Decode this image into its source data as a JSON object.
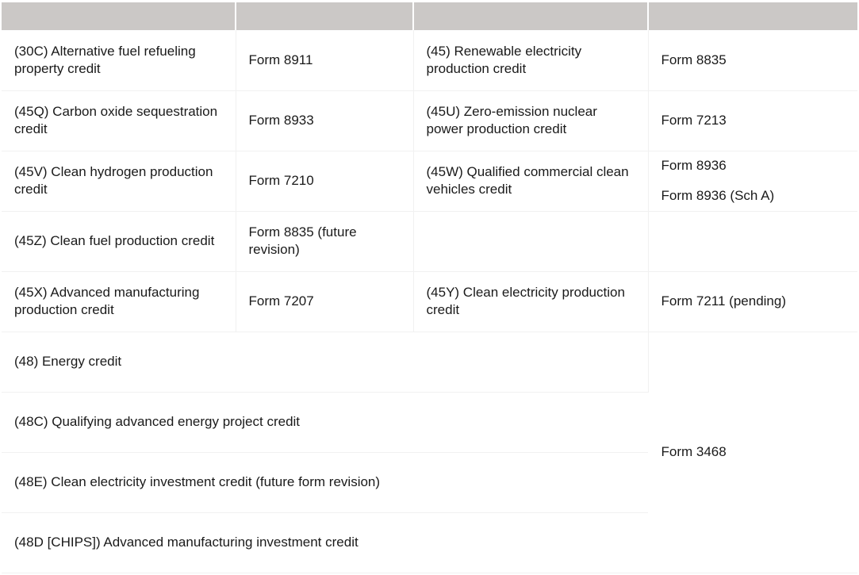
{
  "header": [
    "",
    "",
    "",
    ""
  ],
  "rows": [
    {
      "c1": "(30C) Alternative fuel refueling property credit",
      "c2": "Form 8911",
      "c3": "(45) Renewable electricity production credit",
      "c4": [
        "Form 8835"
      ]
    },
    {
      "c1": "(45Q) Carbon oxide sequestration credit",
      "c2": "Form 8933",
      "c3": "(45U) Zero-emission nuclear power production credit",
      "c4": [
        "Form 7213"
      ]
    },
    {
      "c1": "(45V) Clean hydrogen production credit",
      "c2": "Form 7210",
      "c3": "(45W) Qualified commercial clean vehicles credit",
      "c4": [
        "Form 8936",
        "Form 8936 (Sch A)"
      ]
    },
    {
      "c1": "(45Z) Clean fuel production credit",
      "c2": "Form 8835 (future revision)",
      "c3": "",
      "c4": []
    },
    {
      "c1": "(45X) Advanced manufacturing production credit",
      "c2": "Form 7207",
      "c3": "(45Y) Clean electricity production credit",
      "c4": [
        "Form 7211 (pending)"
      ]
    }
  ],
  "investment_credits": [
    "(48) Energy credit",
    "(48C) Qualifying advanced energy project credit",
    "(48E) Clean electricity investment credit (future form revision)",
    "(48D [CHIPS]) Advanced manufacturing investment credit"
  ],
  "investment_form": "Form 3468"
}
